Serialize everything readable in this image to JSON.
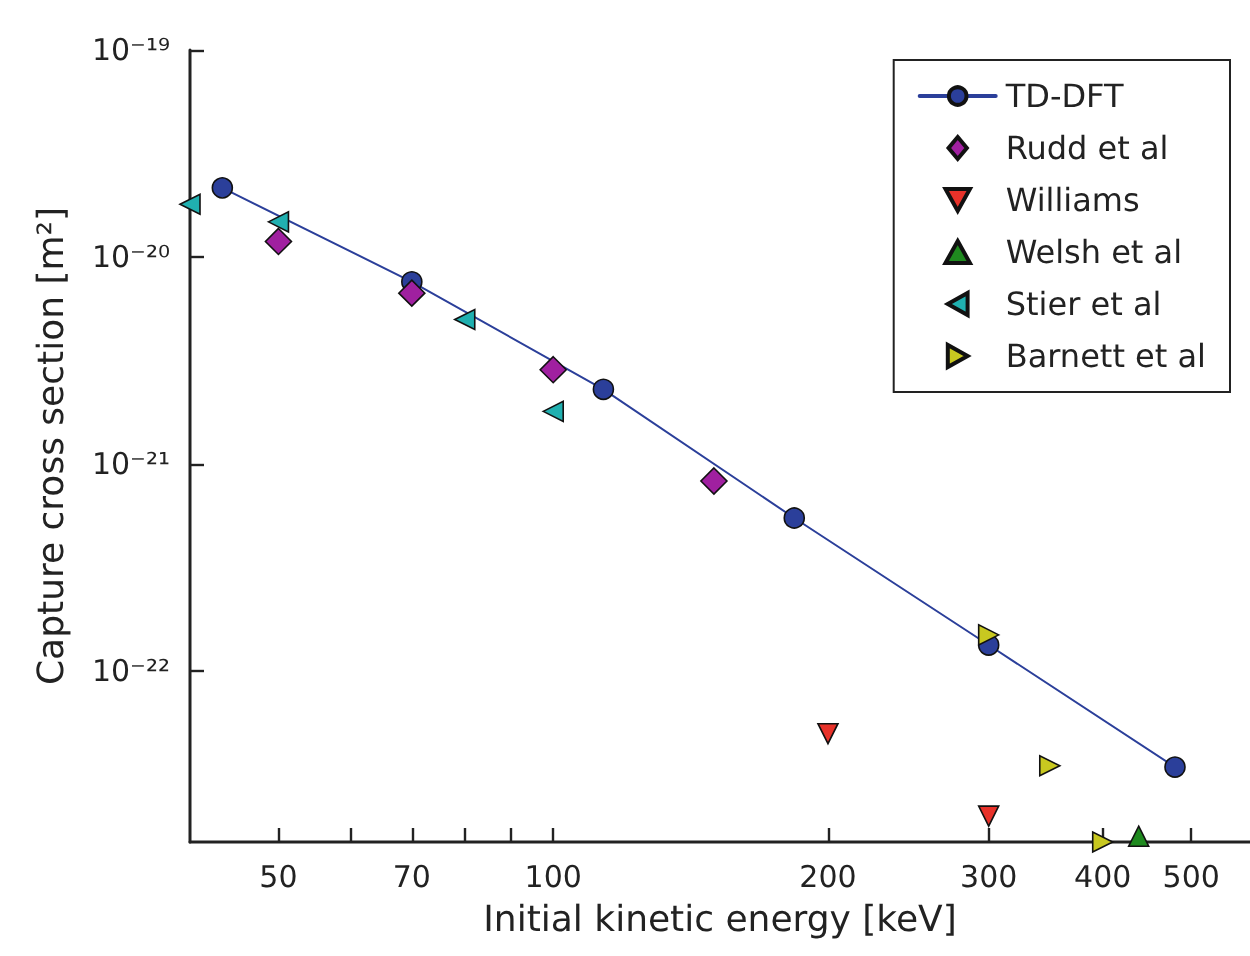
{
  "chart_data": {
    "type": "scatter",
    "xlabel": "Initial kinetic energy [keV]",
    "ylabel": "Capture cross section [m²]",
    "log": "xy",
    "grid": false,
    "legend": "top right",
    "xlim": [
      40,
      580
    ],
    "xticks": [
      50,
      {
        "value": 60,
        "label": null
      },
      70,
      {
        "value": 80,
        "label": null
      },
      {
        "value": 90,
        "label": null
      },
      100,
      200,
      300,
      400,
      500
    ],
    "ylim": [
      1.5e-23,
      1e-19
    ],
    "yticks": [
      {
        "value": 1e-22,
        "label": "10⁻²²"
      },
      {
        "value": 1e-21,
        "label": "10⁻²¹"
      },
      {
        "value": 1e-20,
        "label": "10⁻²⁰"
      },
      {
        "value": 1e-19,
        "label": "10⁻¹⁹"
      }
    ],
    "series": [
      {
        "name": "TD-DFT",
        "type": "line",
        "marker": "circle",
        "line_style": "solid",
        "color": "#2b3f9a",
        "x": [
          43.4,
          70,
          113.5,
          183.7,
          300,
          480
        ],
        "values": [
          2.16e-20,
          7.6e-21,
          2.3e-21,
          5.5e-22,
          1.34e-22,
          3.45e-23
        ]
      },
      {
        "name": "Rudd et al",
        "marker": "diamond",
        "color": "#a020a0",
        "x": [
          50,
          70,
          100,
          150
        ],
        "values": [
          1.19e-20,
          6.7e-21,
          2.86e-21,
          8.3e-22
        ]
      },
      {
        "name": "Williams",
        "marker": "triangle-down",
        "color": "#e8322a",
        "x": [
          200,
          300
        ],
        "values": [
          5e-23,
          2e-23
        ]
      },
      {
        "name": "Welsh et al",
        "marker": "triangle",
        "color": "#1f8a1f",
        "x": [
          438
        ],
        "values": [
          1.6e-23
        ]
      },
      {
        "name": "Stier et al",
        "marker": "triangle-left",
        "color": "#20b0b0",
        "x": [
          40,
          50,
          80,
          100
        ],
        "values": [
          1.8e-20,
          1.48e-20,
          5e-21,
          1.8e-21
        ]
      },
      {
        "name": "Barnett et al",
        "marker": "triangle-right",
        "color": "#c8c820",
        "x": [
          300,
          350,
          400
        ],
        "values": [
          1.5e-22,
          3.5e-23,
          1.5e-23
        ]
      }
    ]
  }
}
